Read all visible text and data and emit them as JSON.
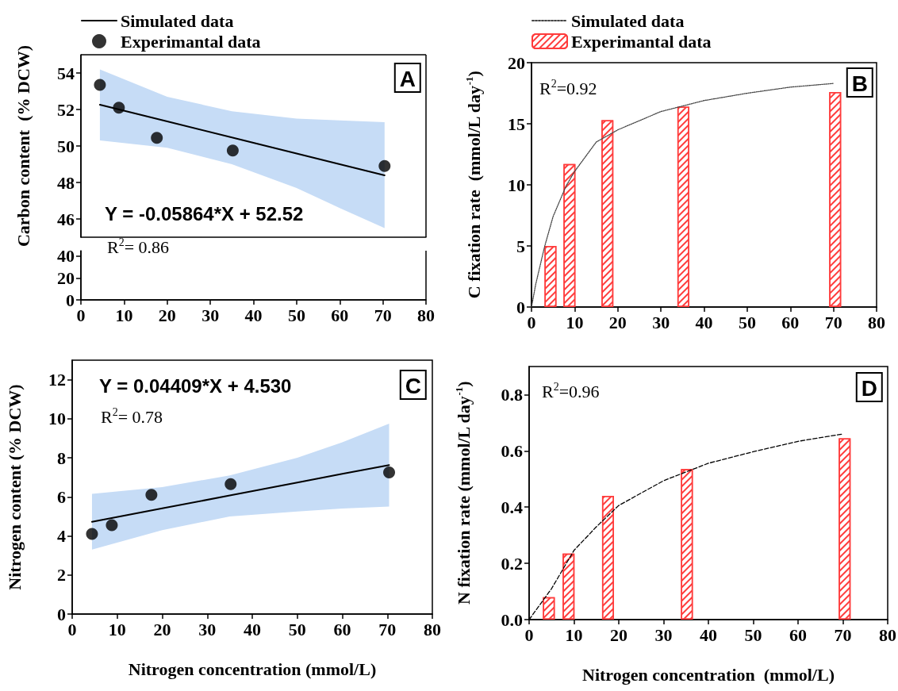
{
  "chart_data": [
    {
      "type": "scatter",
      "title": "A",
      "ylabel": "Carbon content  (% DCW)",
      "xlim": [
        0,
        80
      ],
      "ylim": [
        45,
        55
      ],
      "yticks": [
        46,
        48,
        50,
        52,
        54
      ],
      "tick_labels": "y",
      "legend": "top left",
      "marker": "circle",
      "annotations": [
        "Y = -0.05864*X + 52.52"
      ],
      "series": [
        {
          "type": "line",
          "marker": "none",
          "name": "Simulated data",
          "color": "#000000",
          "x": [
            4.4,
            20,
            35,
            50,
            60,
            70.4
          ],
          "values": [
            52.26,
            51.35,
            50.47,
            49.59,
            49.0,
            48.39
          ],
          "upper": [
            54.2,
            52.7,
            51.9,
            51.5,
            51.4,
            51.3
          ],
          "lower": [
            50.3,
            49.9,
            49.0,
            47.7,
            46.6,
            45.5
          ]
        },
        {
          "name": "Experimantal data",
          "color": "#000000",
          "x": [
            4.4,
            8.8,
            17.6,
            35.2,
            70.4
          ],
          "values": [
            53.35,
            52.1,
            50.45,
            49.75,
            48.9
          ]
        }
      ]
    },
    {
      "type": "scatter",
      "xlim": [
        0,
        80
      ],
      "xticks": [
        0,
        10,
        20,
        30,
        40,
        50,
        60,
        70,
        80
      ],
      "ylim": [
        0,
        45
      ],
      "yticks": [
        0,
        20,
        40
      ],
      "annotations": [
        "R$^{2}$= 0.86"
      ]
    },
    {
      "type": "bar",
      "title": "B",
      "ylabel": "C fixation rate  (mmol/L day$^{-1}$)",
      "xlim": [
        0,
        80
      ],
      "xticks": [
        0,
        10,
        20,
        30,
        40,
        50,
        60,
        70,
        80
      ],
      "ylim": [
        0,
        20
      ],
      "yticks": [
        0,
        5,
        10,
        15,
        20
      ],
      "legend": "top left",
      "annotations": [
        "R$^{2}$=0.92"
      ],
      "series": [
        {
          "type": "line",
          "marker": "none",
          "name": "Simulated data",
          "color": "#444444",
          "line_style": "dotted",
          "x": [
            0,
            1,
            3,
            5,
            8,
            10,
            15,
            20,
            30,
            40,
            50,
            60,
            70
          ],
          "values": [
            0,
            1.9,
            4.9,
            7.4,
            9.9,
            11.1,
            13.5,
            14.5,
            16.0,
            16.9,
            17.5,
            18.0,
            18.3
          ]
        },
        {
          "name": "Experimantal data",
          "color": "#ff3b3b",
          "x": [
            4.4,
            8.8,
            17.6,
            35.2,
            70.4
          ],
          "values": [
            5.0,
            11.7,
            15.3,
            16.4,
            17.6
          ]
        }
      ]
    },
    {
      "type": "scatter",
      "title": "C",
      "xlabel": "Nitrogen concentration (mmol/L)",
      "ylabel": "Nitrogen content (% DCW)",
      "xlim": [
        0,
        80
      ],
      "xticks": [
        0,
        10,
        20,
        30,
        40,
        50,
        60,
        70,
        80
      ],
      "ylim": [
        0,
        13
      ],
      "yticks": [
        0,
        2,
        4,
        6,
        8,
        10,
        12
      ],
      "marker": "circle",
      "annotations": [
        "Y = 0.04409*X + 4.530",
        "R$^{2}$= 0.78"
      ],
      "series": [
        {
          "type": "line",
          "marker": "none",
          "color": "#000000",
          "x": [
            4.4,
            20,
            35,
            50,
            60,
            70.4
          ],
          "values": [
            4.72,
            5.41,
            6.07,
            6.73,
            7.18,
            7.63
          ],
          "upper": [
            6.15,
            6.5,
            7.1,
            8.0,
            8.8,
            9.75
          ],
          "lower": [
            3.3,
            4.3,
            5.0,
            5.25,
            5.4,
            5.5
          ]
        },
        {
          "color": "#000000",
          "x": [
            4.4,
            8.8,
            17.6,
            35.2,
            70.4
          ],
          "values": [
            4.1,
            4.55,
            6.1,
            6.65,
            7.25
          ]
        }
      ]
    },
    {
      "type": "bar",
      "title": "D",
      "xlabel": "Nitrogen concentration  (mmol/L)",
      "ylabel": "N fixation rate (mmol/L day$^{-1}$)",
      "xlim": [
        0,
        80
      ],
      "xticks": [
        0,
        10,
        20,
        30,
        40,
        50,
        60,
        70,
        80
      ],
      "ylim": [
        0,
        0.9
      ],
      "yticks": [
        {
          "value": 0,
          "label": "0.0"
        },
        0.2,
        0.4,
        0.6,
        0.8
      ],
      "annotations": [
        "R$^{2}$=0.96"
      ],
      "series": [
        {
          "type": "line",
          "marker": "none",
          "color": "#000000",
          "line_style": "dashed",
          "x": [
            0,
            5,
            10,
            15,
            20,
            30,
            40,
            50,
            60,
            70
          ],
          "values": [
            0,
            0.11,
            0.246,
            0.33,
            0.406,
            0.494,
            0.556,
            0.597,
            0.634,
            0.66
          ]
        },
        {
          "color": "#ff3b3b",
          "x": [
            4.4,
            8.8,
            17.6,
            35.2,
            70.4
          ],
          "values": [
            0.08,
            0.235,
            0.44,
            0.535,
            0.645
          ]
        }
      ]
    }
  ]
}
